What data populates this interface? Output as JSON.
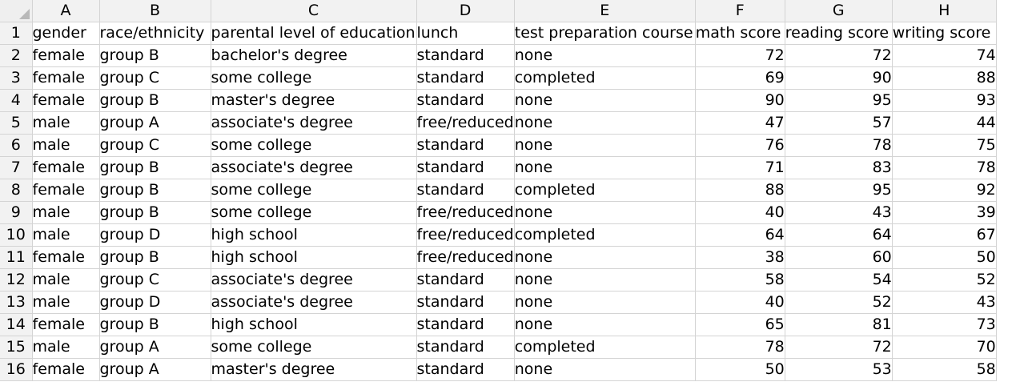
{
  "columns": [
    "A",
    "B",
    "C",
    "D",
    "E",
    "F",
    "G",
    "H"
  ],
  "rows": [
    {
      "num": "1",
      "cells": [
        "gender",
        "race/ethnicity",
        "parental level of education",
        "lunch",
        "test preparation course",
        "math score",
        "reading score",
        "writing score"
      ]
    },
    {
      "num": "2",
      "cells": [
        "female",
        "group B",
        "bachelor's degree",
        "standard",
        "none",
        "72",
        "72",
        "74"
      ]
    },
    {
      "num": "3",
      "cells": [
        "female",
        "group C",
        "some college",
        "standard",
        "completed",
        "69",
        "90",
        "88"
      ]
    },
    {
      "num": "4",
      "cells": [
        "female",
        "group B",
        "master's degree",
        "standard",
        "none",
        "90",
        "95",
        "93"
      ]
    },
    {
      "num": "5",
      "cells": [
        "male",
        "group A",
        "associate's degree",
        "free/reduced",
        "none",
        "47",
        "57",
        "44"
      ]
    },
    {
      "num": "6",
      "cells": [
        "male",
        "group C",
        "some college",
        "standard",
        "none",
        "76",
        "78",
        "75"
      ]
    },
    {
      "num": "7",
      "cells": [
        "female",
        "group B",
        "associate's degree",
        "standard",
        "none",
        "71",
        "83",
        "78"
      ]
    },
    {
      "num": "8",
      "cells": [
        "female",
        "group B",
        "some college",
        "standard",
        "completed",
        "88",
        "95",
        "92"
      ]
    },
    {
      "num": "9",
      "cells": [
        "male",
        "group B",
        "some college",
        "free/reduced",
        "none",
        "40",
        "43",
        "39"
      ]
    },
    {
      "num": "10",
      "cells": [
        "male",
        "group D",
        "high school",
        "free/reduced",
        "completed",
        "64",
        "64",
        "67"
      ]
    },
    {
      "num": "11",
      "cells": [
        "female",
        "group B",
        "high school",
        "free/reduced",
        "none",
        "38",
        "60",
        "50"
      ]
    },
    {
      "num": "12",
      "cells": [
        "male",
        "group C",
        "associate's degree",
        "standard",
        "none",
        "58",
        "54",
        "52"
      ]
    },
    {
      "num": "13",
      "cells": [
        "male",
        "group D",
        "associate's degree",
        "standard",
        "none",
        "40",
        "52",
        "43"
      ]
    },
    {
      "num": "14",
      "cells": [
        "female",
        "group B",
        "high school",
        "standard",
        "none",
        "65",
        "81",
        "73"
      ]
    },
    {
      "num": "15",
      "cells": [
        "male",
        "group A",
        "some college",
        "standard",
        "completed",
        "78",
        "72",
        "70"
      ]
    },
    {
      "num": "16",
      "cells": [
        "female",
        "group A",
        "master's degree",
        "standard",
        "none",
        "50",
        "53",
        "58"
      ]
    }
  ]
}
